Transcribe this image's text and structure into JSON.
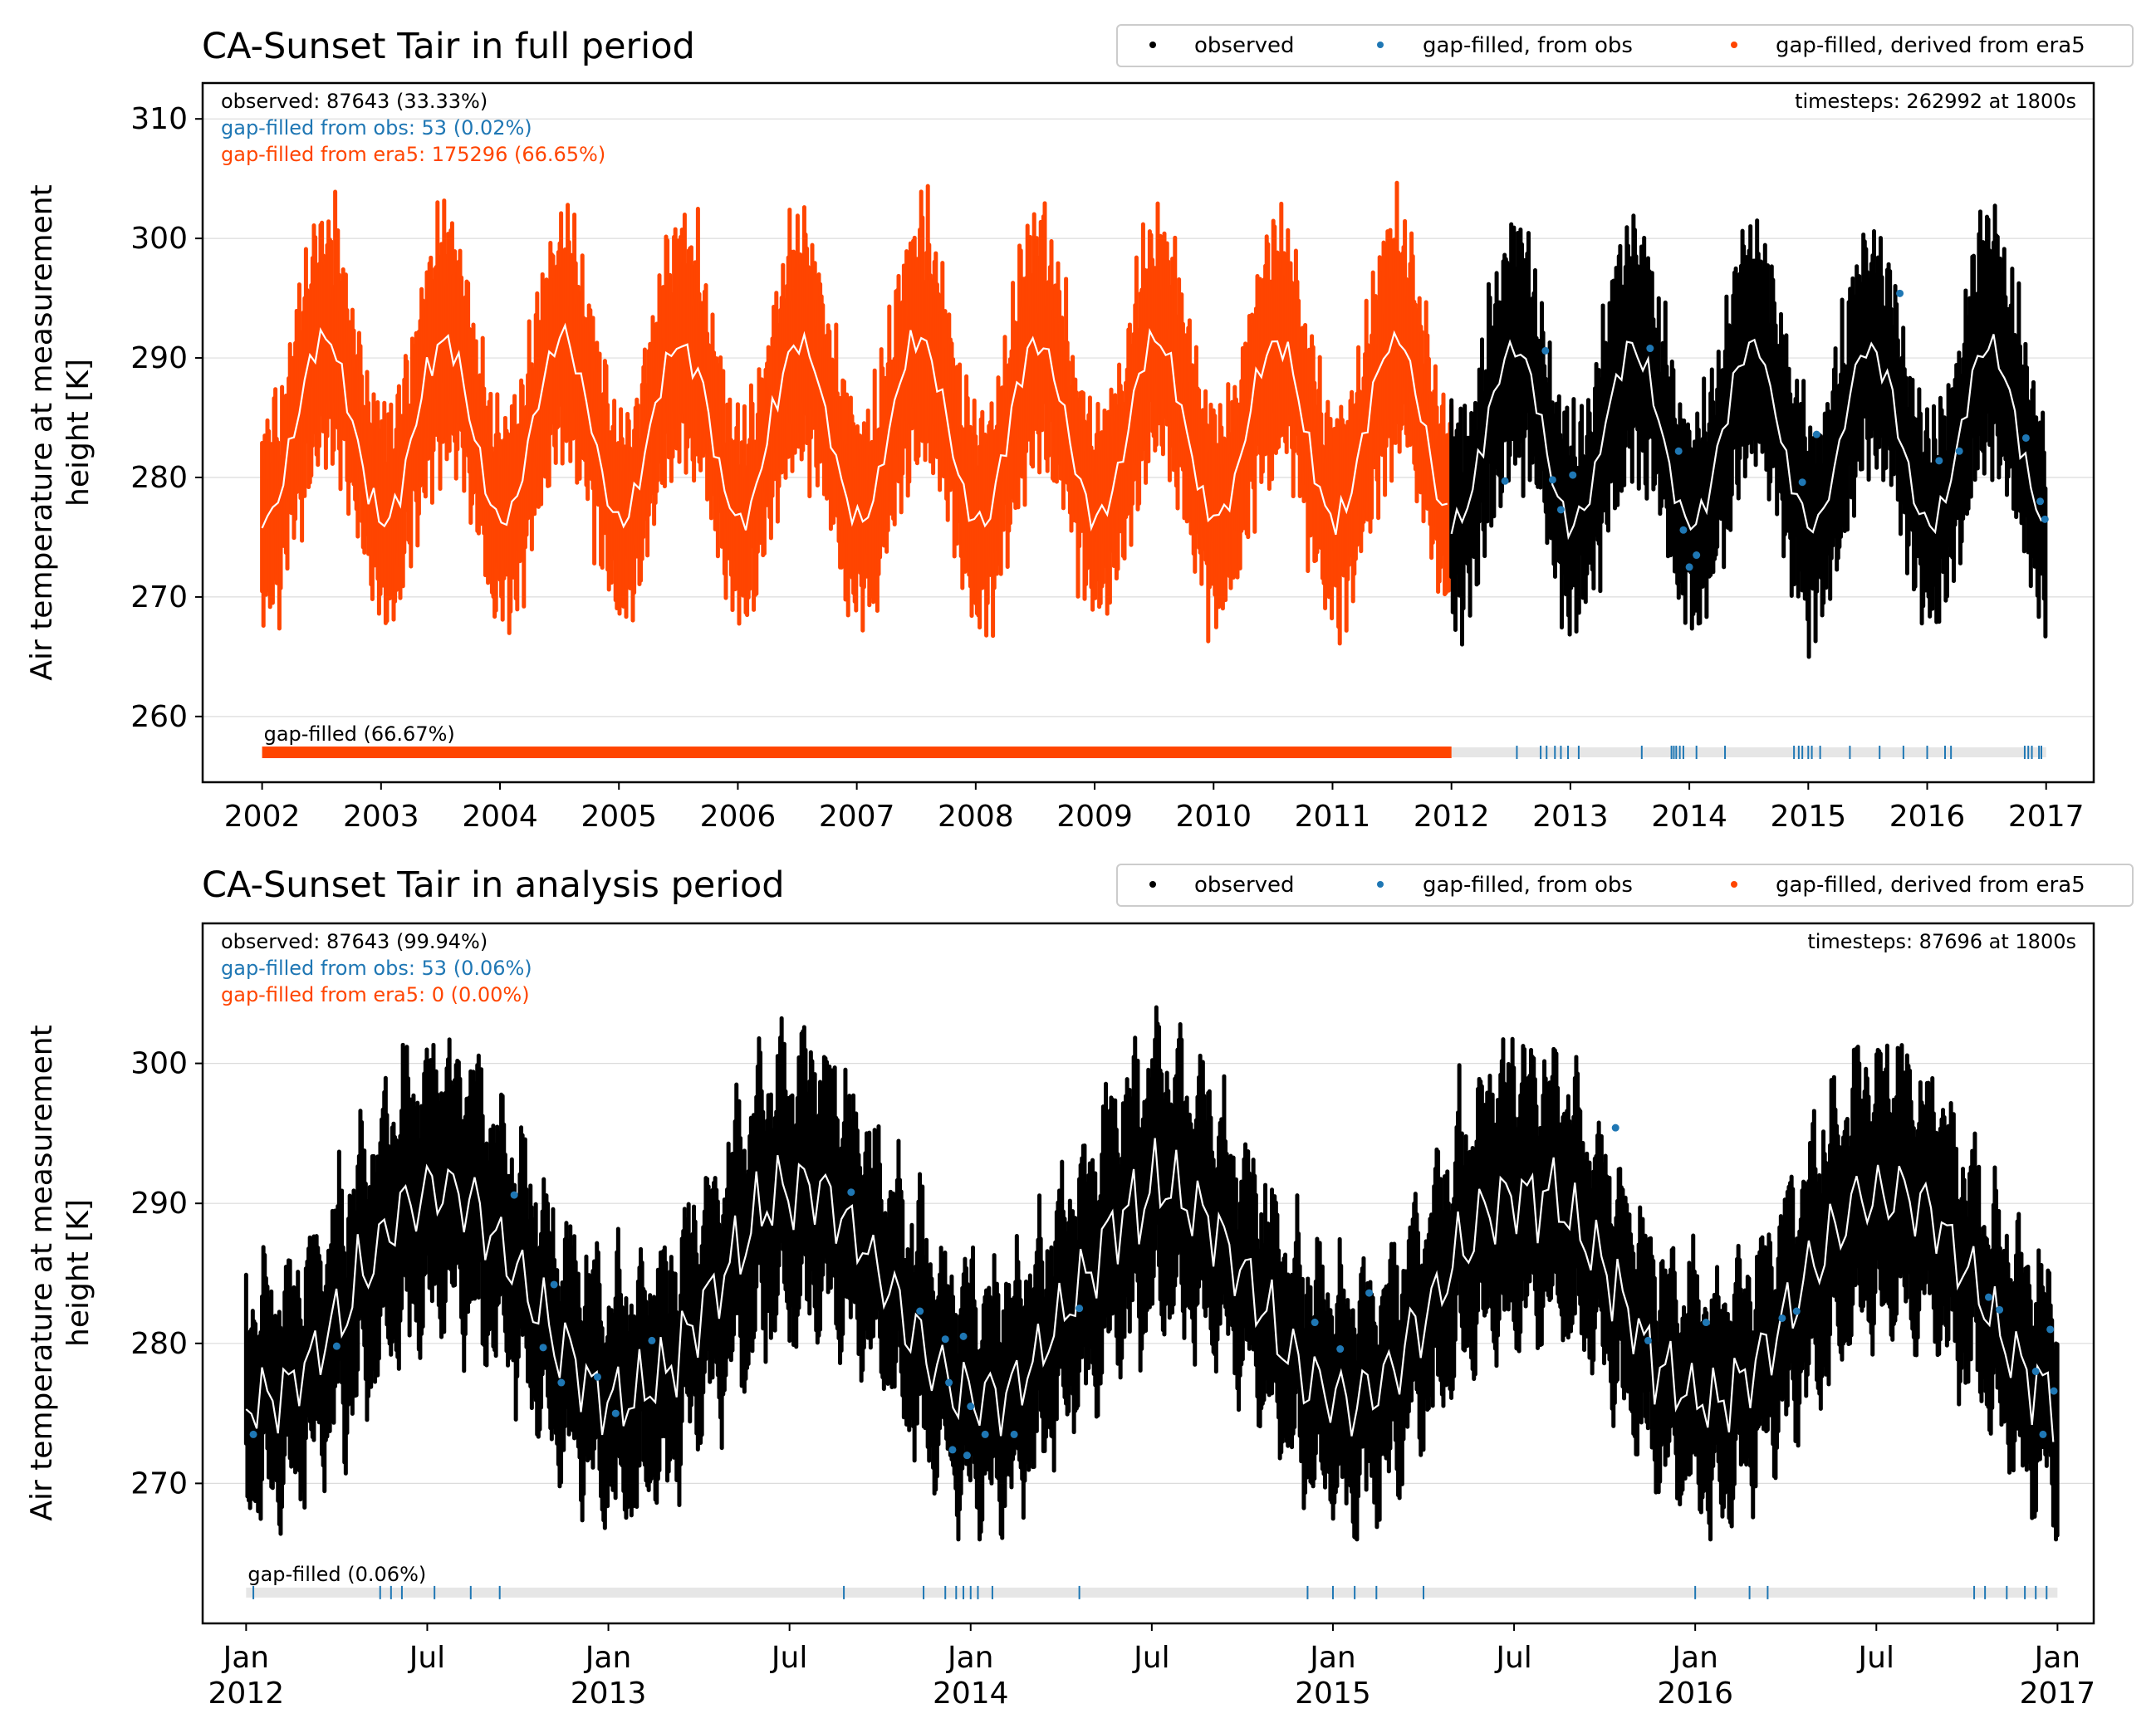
{
  "colors": {
    "observed": "#000000",
    "gapfilled_obs": "#1f77b4",
    "gapfilled_era5": "#ff4500",
    "mean_line": "#ffffff",
    "grid": "#dcdcdc",
    "gapbar_bg": "#e6e6e6"
  },
  "legend": {
    "observed": "observed",
    "gapfilled_obs": "gap-filled, from obs",
    "gapfilled_era5": "gap-filled, derived from era5"
  },
  "chart_data": [
    {
      "type": "scatter",
      "title": "CA-Sunset Tair in full period",
      "xlabel": "",
      "ylabel": "Air temperature at measurement height [K]",
      "ylabel_lines": [
        "Air temperature at measurement",
        "height [K]"
      ],
      "xlim": [
        2001.5,
        2017.4
      ],
      "ylim": [
        254.5,
        313
      ],
      "yticks": [
        260,
        270,
        280,
        290,
        300,
        310
      ],
      "xticks": [
        {
          "x": 2002,
          "label": "2002"
        },
        {
          "x": 2003,
          "label": "2003"
        },
        {
          "x": 2004,
          "label": "2004"
        },
        {
          "x": 2005,
          "label": "2005"
        },
        {
          "x": 2006,
          "label": "2006"
        },
        {
          "x": 2007,
          "label": "2007"
        },
        {
          "x": 2008,
          "label": "2008"
        },
        {
          "x": 2009,
          "label": "2009"
        },
        {
          "x": 2010,
          "label": "2010"
        },
        {
          "x": 2011,
          "label": "2011"
        },
        {
          "x": 2012,
          "label": "2012"
        },
        {
          "x": 2013,
          "label": "2013"
        },
        {
          "x": 2014,
          "label": "2014"
        },
        {
          "x": 2015,
          "label": "2015"
        },
        {
          "x": 2016,
          "label": "2016"
        },
        {
          "x": 2017,
          "label": "2017"
        }
      ],
      "grid": "horizontal",
      "legend_position": "top-right",
      "stats": {
        "observed": "observed: 87643 (33.33%)",
        "gapfilled_obs": "gap-filled from obs: 53 (0.02%)",
        "gapfilled_era5": "gap-filled from era5: 175296 (66.65%)",
        "timesteps": "timesteps: 262992 at 1800s"
      },
      "gapbar_label": "gap-filled (66.67%)",
      "gapbar_y": 257,
      "series": [
        {
          "name": "gap-filled, derived from era5",
          "color": "#ff4500",
          "x_range": [
            2002.0,
            2012.0
          ],
          "mean_k": 284,
          "amplitude_k": 7.5,
          "diurnal_k": 5
        },
        {
          "name": "observed",
          "color": "#000000",
          "x_range": [
            2012.0,
            2017.0
          ],
          "mean_k": 283.5,
          "amplitude_k": 7.5,
          "diurnal_k": 5
        }
      ],
      "gap_obs_ticks": [
        2012.55,
        2012.75,
        2012.8,
        2012.87,
        2012.92,
        2012.98,
        2013.07,
        2013.6,
        2013.85,
        2013.87,
        2013.89,
        2013.92,
        2013.95,
        2014.06,
        2014.3,
        2014.88,
        2014.92,
        2014.95,
        2015.0,
        2015.03,
        2015.1,
        2015.35,
        2015.6,
        2015.8,
        2016.0,
        2016.15,
        2016.2,
        2016.82,
        2016.85,
        2016.88,
        2016.94,
        2016.96
      ],
      "era5_gap_range": [
        2002.0,
        2012.0
      ],
      "gap_obs_points": [
        {
          "x": 2012.45,
          "y": 279.7
        },
        {
          "x": 2012.79,
          "y": 290.6
        },
        {
          "x": 2012.85,
          "y": 279.8
        },
        {
          "x": 2012.92,
          "y": 277.3
        },
        {
          "x": 2013.02,
          "y": 280.2
        },
        {
          "x": 2013.67,
          "y": 290.8
        },
        {
          "x": 2013.91,
          "y": 282.2
        },
        {
          "x": 2013.95,
          "y": 275.6
        },
        {
          "x": 2014.0,
          "y": 272.5
        },
        {
          "x": 2014.06,
          "y": 273.5
        },
        {
          "x": 2014.95,
          "y": 279.6
        },
        {
          "x": 2015.07,
          "y": 283.6
        },
        {
          "x": 2015.77,
          "y": 295.4
        },
        {
          "x": 2016.1,
          "y": 281.4
        },
        {
          "x": 2016.27,
          "y": 282.2
        },
        {
          "x": 2016.83,
          "y": 283.3
        },
        {
          "x": 2016.95,
          "y": 278.0
        },
        {
          "x": 2016.99,
          "y": 276.5
        }
      ]
    },
    {
      "type": "scatter",
      "title": "CA-Sunset Tair in analysis period",
      "xlabel": "",
      "ylabel": "Air temperature at measurement height [K]",
      "ylabel_lines": [
        "Air temperature at measurement",
        "height [K]"
      ],
      "xlim": [
        2011.88,
        2017.1
      ],
      "ylim": [
        260,
        310
      ],
      "yticks": [
        270,
        280,
        290,
        300
      ],
      "xticks": [
        {
          "x": 2012.0,
          "label": "Jan",
          "label2": "2012"
        },
        {
          "x": 2012.5,
          "label": "Jul"
        },
        {
          "x": 2013.0,
          "label": "Jan",
          "label2": "2013"
        },
        {
          "x": 2013.5,
          "label": "Jul"
        },
        {
          "x": 2014.0,
          "label": "Jan",
          "label2": "2014"
        },
        {
          "x": 2014.5,
          "label": "Jul"
        },
        {
          "x": 2015.0,
          "label": "Jan",
          "label2": "2015"
        },
        {
          "x": 2015.5,
          "label": "Jul"
        },
        {
          "x": 2016.0,
          "label": "Jan",
          "label2": "2016"
        },
        {
          "x": 2016.5,
          "label": "Jul"
        },
        {
          "x": 2017.0,
          "label": "Jan",
          "label2": "2017"
        }
      ],
      "grid": "horizontal",
      "legend_position": "top-right",
      "stats": {
        "observed": "observed: 87643 (99.94%)",
        "gapfilled_obs": "gap-filled from obs: 53 (0.06%)",
        "gapfilled_era5": "gap-filled from era5: 0 (0.00%)",
        "timesteps": "timesteps: 87696 at 1800s"
      },
      "gapbar_label": "gap-filled (0.06%)",
      "gapbar_y": 262.2,
      "series": [
        {
          "name": "observed",
          "color": "#000000",
          "x_range": [
            2012.0,
            2017.0
          ],
          "mean_k": 283.5,
          "amplitude_k": 7.5,
          "diurnal_k": 5
        }
      ],
      "gap_obs_ticks": [
        2012.02,
        2012.37,
        2012.4,
        2012.43,
        2012.52,
        2012.62,
        2012.7,
        2013.65,
        2013.87,
        2013.93,
        2013.96,
        2013.98,
        2014.0,
        2014.02,
        2014.06,
        2014.3,
        2014.93,
        2015.0,
        2015.06,
        2015.12,
        2015.25,
        2016.0,
        2016.15,
        2016.2,
        2016.77,
        2016.8,
        2016.86,
        2016.91,
        2016.94,
        2016.97
      ],
      "gap_obs_points": [
        {
          "x": 2012.02,
          "y": 273.5
        },
        {
          "x": 2012.25,
          "y": 279.8
        },
        {
          "x": 2012.74,
          "y": 290.6
        },
        {
          "x": 2012.82,
          "y": 279.7
        },
        {
          "x": 2012.85,
          "y": 284.2
        },
        {
          "x": 2012.87,
          "y": 277.2
        },
        {
          "x": 2012.97,
          "y": 277.6
        },
        {
          "x": 2013.02,
          "y": 275.0
        },
        {
          "x": 2013.12,
          "y": 280.2
        },
        {
          "x": 2013.67,
          "y": 290.8
        },
        {
          "x": 2013.86,
          "y": 282.3
        },
        {
          "x": 2013.93,
          "y": 280.3
        },
        {
          "x": 2013.94,
          "y": 277.2
        },
        {
          "x": 2013.95,
          "y": 272.4
        },
        {
          "x": 2013.98,
          "y": 280.5
        },
        {
          "x": 2013.99,
          "y": 272.0
        },
        {
          "x": 2014.0,
          "y": 275.5
        },
        {
          "x": 2014.04,
          "y": 273.5
        },
        {
          "x": 2014.12,
          "y": 273.5
        },
        {
          "x": 2014.3,
          "y": 282.5
        },
        {
          "x": 2014.95,
          "y": 281.5
        },
        {
          "x": 2015.02,
          "y": 279.6
        },
        {
          "x": 2015.1,
          "y": 283.6
        },
        {
          "x": 2015.78,
          "y": 295.4
        },
        {
          "x": 2015.87,
          "y": 280.2
        },
        {
          "x": 2016.03,
          "y": 281.5
        },
        {
          "x": 2016.24,
          "y": 281.8
        },
        {
          "x": 2016.28,
          "y": 282.3
        },
        {
          "x": 2016.81,
          "y": 283.3
        },
        {
          "x": 2016.84,
          "y": 282.4
        },
        {
          "x": 2016.94,
          "y": 278.0
        },
        {
          "x": 2016.96,
          "y": 273.5
        },
        {
          "x": 2016.98,
          "y": 281.0
        },
        {
          "x": 2016.99,
          "y": 276.6
        }
      ]
    }
  ]
}
